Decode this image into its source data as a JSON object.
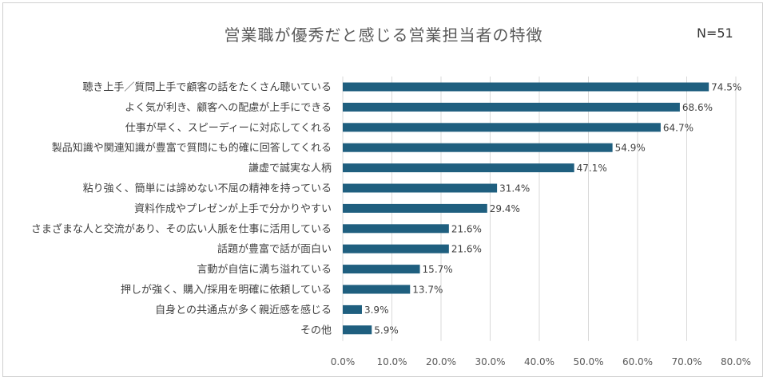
{
  "chart_data": {
    "type": "bar",
    "orientation": "horizontal",
    "title": "営業職が優秀だと感じる営業担当者の特徴",
    "annotation": "N=51",
    "categories": [
      "聴き上手／質問上手で顧客の話をたくさん聴いている",
      "よく気が利き、顧客への配慮が上手にできる",
      "仕事が早く、スピーディーに対応してくれる",
      "製品知識や関連知識が豊富で質問にも的確に回答してくれる",
      "謙虚で誠実な人柄",
      "粘り強く、簡単には諦めない不屈の精神を持っている",
      "資料作成やプレゼンが上手で分かりやすい",
      "さまざまな人と交流があり、その広い人脈を仕事に活用している",
      "話題が豊富で話が面白い",
      "言動が自信に満ち溢れている",
      "押しが強く、購入/採用を明確に依頼している",
      "自身との共通点が多く親近感を感じる",
      "その他"
    ],
    "values": [
      74.5,
      68.6,
      64.7,
      54.9,
      47.1,
      31.4,
      29.4,
      21.6,
      21.6,
      15.7,
      13.7,
      3.9,
      5.9
    ],
    "value_labels": [
      "74.5%",
      "68.6%",
      "64.7%",
      "54.9%",
      "47.1%",
      "31.4%",
      "29.4%",
      "21.6%",
      "21.6%",
      "15.7%",
      "13.7%",
      "3.9%",
      "5.9%"
    ],
    "xlim": [
      0,
      80
    ],
    "x_ticks": [
      0,
      10,
      20,
      30,
      40,
      50,
      60,
      70,
      80
    ],
    "x_tick_labels": [
      "0.0%",
      "10.0%",
      "20.0%",
      "30.0%",
      "40.0%",
      "50.0%",
      "60.0%",
      "70.0%",
      "80.0%"
    ],
    "grid": "vertical",
    "legend": "none",
    "bar_color": "#1f5f7f",
    "grid_color": "#d9d9d9"
  }
}
